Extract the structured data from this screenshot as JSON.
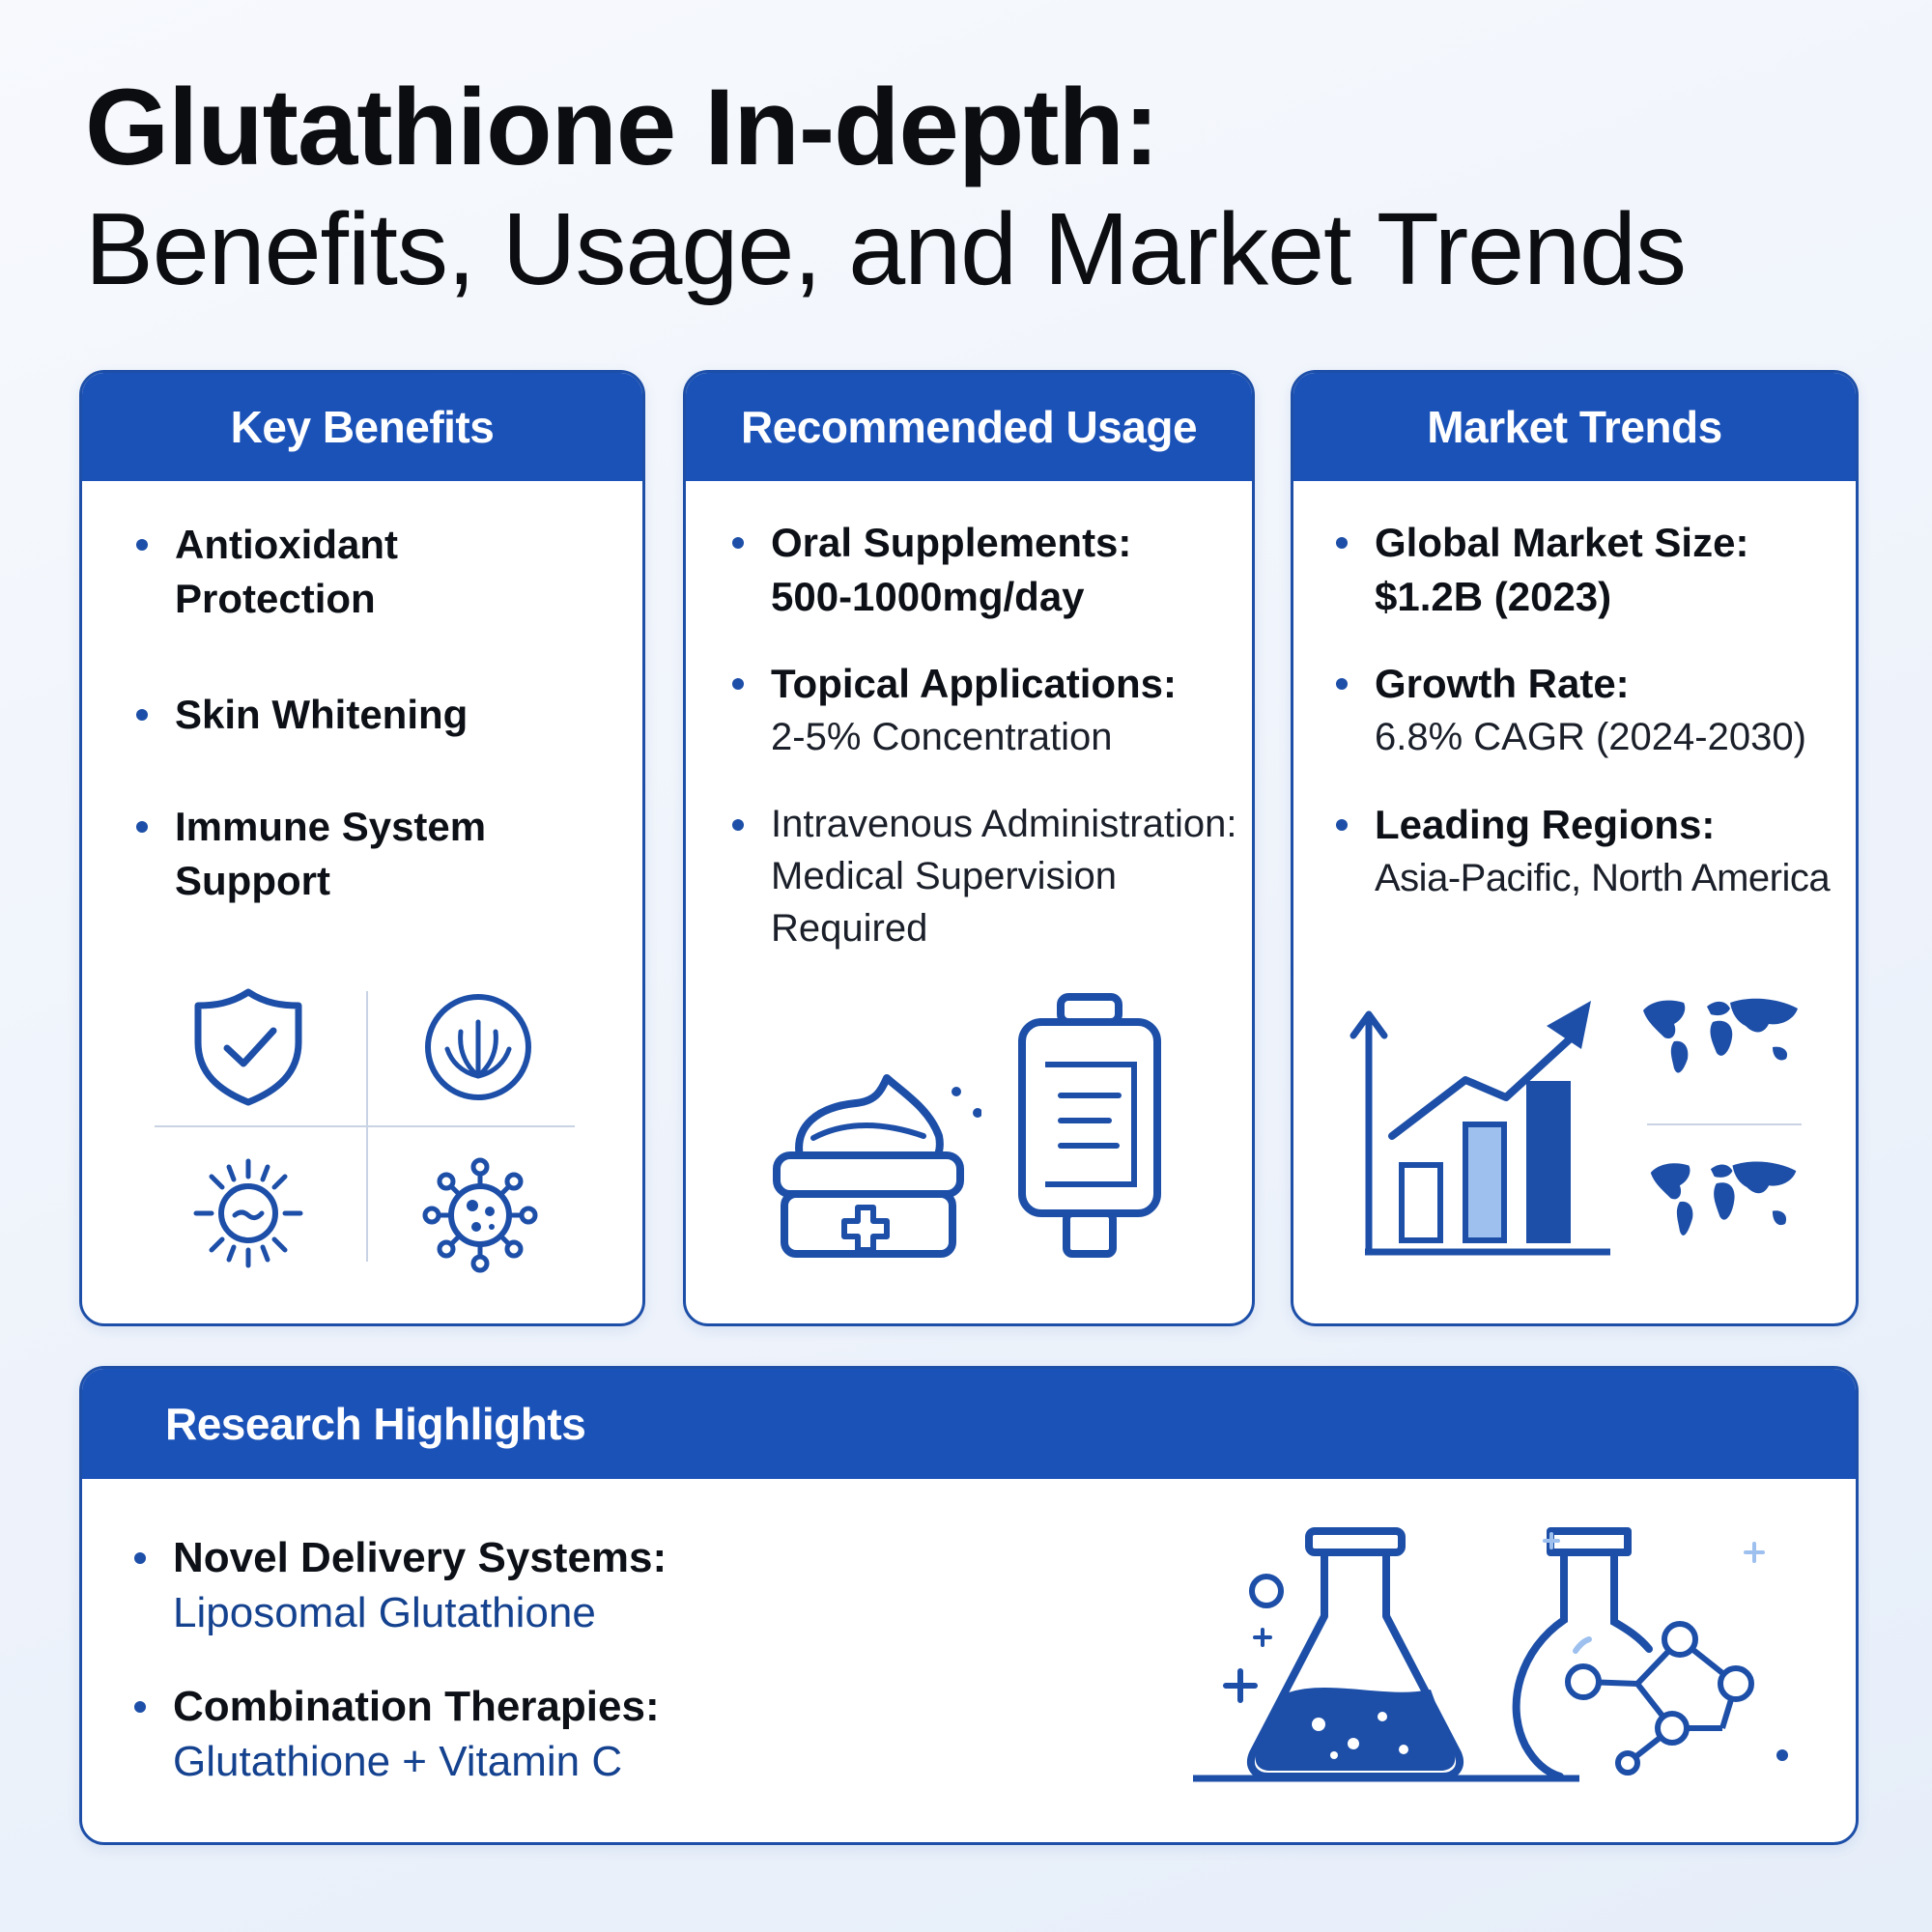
{
  "title": {
    "line1": "Glutathione In-depth:",
    "line2": "Benefits, Usage, and Market Trends"
  },
  "key_benefits": {
    "heading": "Key Benefits",
    "items": [
      {
        "label": "Antioxidant Protection"
      },
      {
        "label": "Skin Whitening"
      },
      {
        "label": "Immune System Support"
      }
    ],
    "icons": [
      "shield-check-icon",
      "leaf-circle-icon",
      "sun-icon",
      "virus-icon"
    ]
  },
  "recommended_usage": {
    "heading": "Recommended Usage",
    "items": [
      {
        "label": "Oral Supplements:",
        "detail": "500-1000mg/day"
      },
      {
        "label": "Topical Applications:",
        "detail": "2-5% Concentration"
      },
      {
        "label": "Intravenous Administration:",
        "detail": "Medical Supervision Required"
      }
    ],
    "icons": [
      "cream-jar-icon",
      "iv-bag-icon"
    ]
  },
  "market_trends": {
    "heading": "Market Trends",
    "items": [
      {
        "label": "Global Market Size:",
        "detail": "$1.2B (2023)"
      },
      {
        "label": "Growth Rate:",
        "detail": "6.8% CAGR (2024-2030)"
      },
      {
        "label": "Leading Regions:",
        "detail": "Asia-Pacific, North America"
      }
    ],
    "icons": [
      "growth-bar-chart-icon",
      "world-map-icon",
      "world-map-icon"
    ]
  },
  "research_highlights": {
    "heading": "Research Highlights",
    "items": [
      {
        "label": "Novel Delivery Systems:",
        "detail": "Liposomal Glutathione"
      },
      {
        "label": "Combination Therapies:",
        "detail": "Glutathione + Vitamin C"
      }
    ],
    "icons": [
      "lab-flask-icon",
      "molecule-flask-icon"
    ]
  },
  "colors": {
    "primary": "#1b52b8",
    "border": "#1d4fa8",
    "text": "#0d1117",
    "detail_blue": "#15428f",
    "background": "#eef3fb"
  }
}
